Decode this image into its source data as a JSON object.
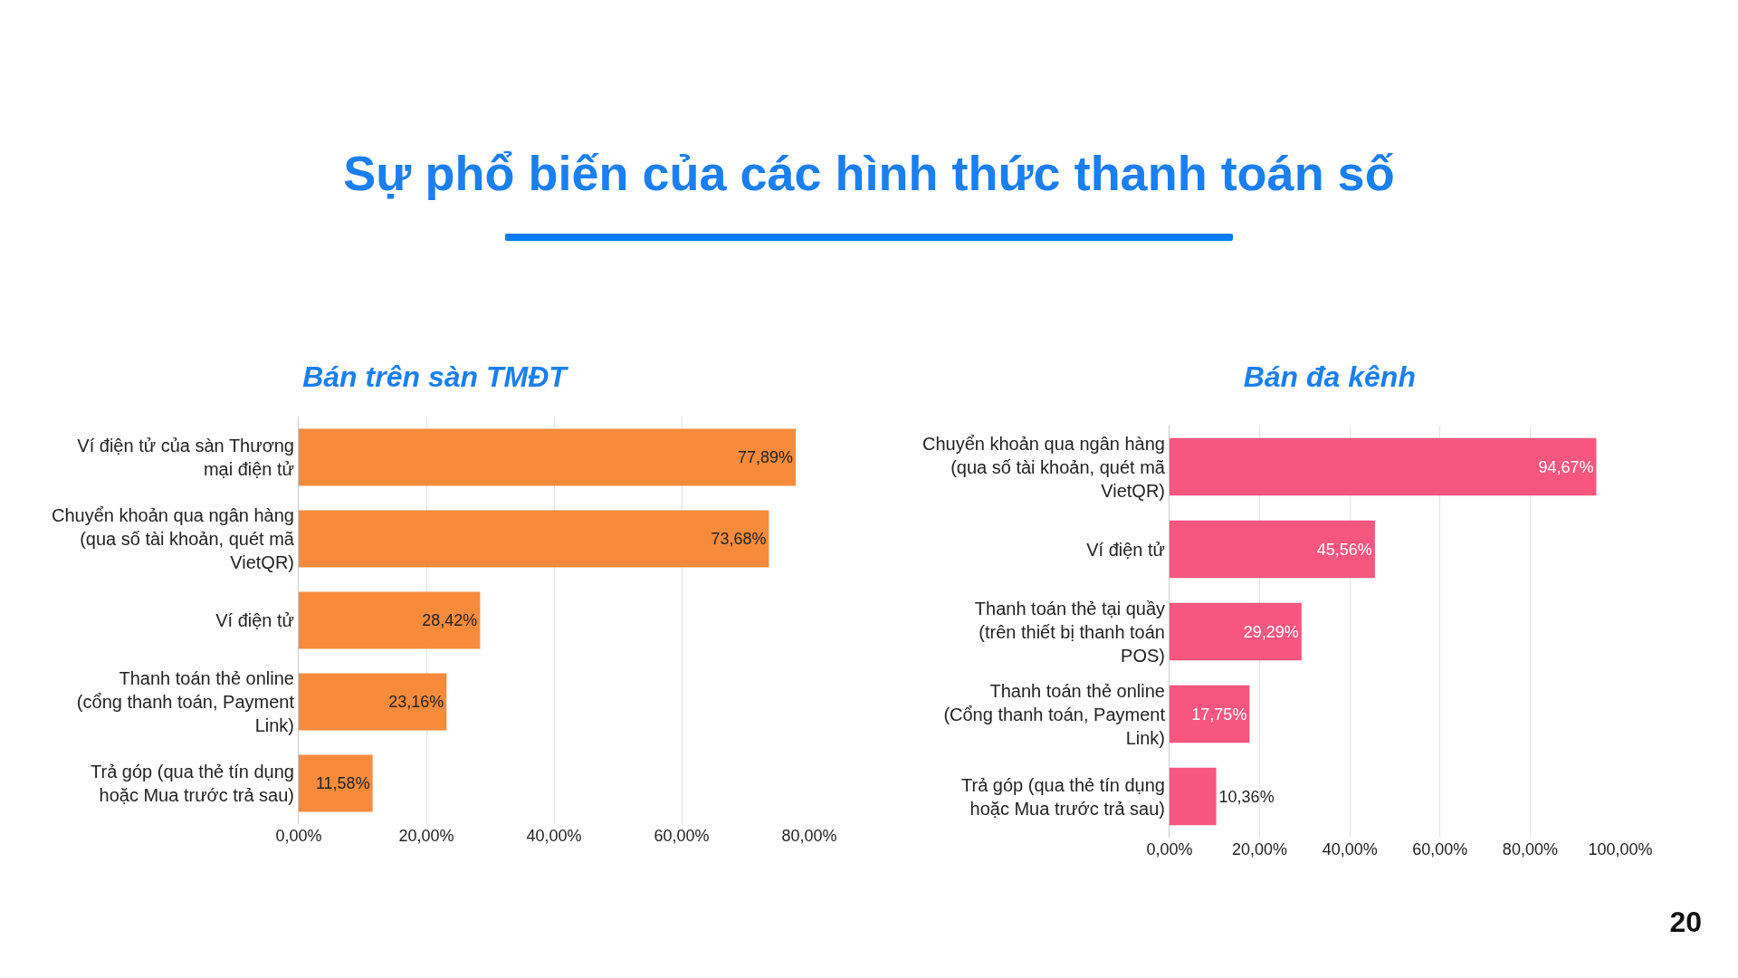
{
  "chart_data": [
    {
      "type": "bar",
      "orientation": "horizontal",
      "title": "Bán trên sàn TMĐT",
      "annotations": [
        "Sự phổ biến của các hình thức thanh toán số"
      ],
      "categories": [
        "Ví điện tử của sàn Thương mại điện tử",
        "Chuyển khoản qua ngân hàng (qua số tài khoản, quét mã VietQR)",
        "Ví điện tử",
        "Thanh toán thẻ online (cổng thanh toán, Payment Link)",
        "Trả góp (qua thẻ tín dụng hoặc Mua trước trả sau)"
      ],
      "values": [
        77.89,
        73.68,
        28.42,
        23.16,
        11.58
      ],
      "value_labels": [
        "77,89%",
        "73,68%",
        "28,42%",
        "23,16%",
        "11,58%"
      ],
      "color": "#f78b3b",
      "xlim": [
        0,
        80
      ],
      "xticks": [
        {
          "value": 0,
          "label": "0,00%"
        },
        {
          "value": 20,
          "label": "20,00%"
        },
        {
          "value": 40,
          "label": "40,00%"
        },
        {
          "value": 60,
          "label": "60,00%"
        },
        {
          "value": 80,
          "label": "80,00%"
        }
      ],
      "grid": "x"
    },
    {
      "type": "bar",
      "orientation": "horizontal",
      "title": "Bán đa kênh",
      "annotations": [
        "20"
      ],
      "categories": [
        "Chuyển khoản qua ngân hàng (qua số tài khoản, quét mã VietQR)",
        "Ví điện tử",
        "Thanh toán thẻ tại quầy (trên thiết bị thanh toán POS)",
        "Thanh toán thẻ online (Cổng thanh toán, Payment Link)",
        "Trả góp (qua thẻ tín dụng hoặc Mua trước trả sau)"
      ],
      "values": [
        94.67,
        45.56,
        29.29,
        17.75,
        10.36
      ],
      "value_labels": [
        "94,67%",
        "45,56%",
        "29,29%",
        "17,75%",
        "10,36%"
      ],
      "color": "#f7567f",
      "xlim": [
        0,
        100
      ],
      "xticks": [
        {
          "value": 0,
          "label": "0,00%"
        },
        {
          "value": 20,
          "label": "20,00%"
        },
        {
          "value": 40,
          "label": "40,00%"
        },
        {
          "value": 60,
          "label": "60,00%"
        },
        {
          "value": 80,
          "label": "80,00%"
        },
        {
          "value": 100,
          "label": "100,00%"
        }
      ],
      "grid": "x"
    }
  ]
}
